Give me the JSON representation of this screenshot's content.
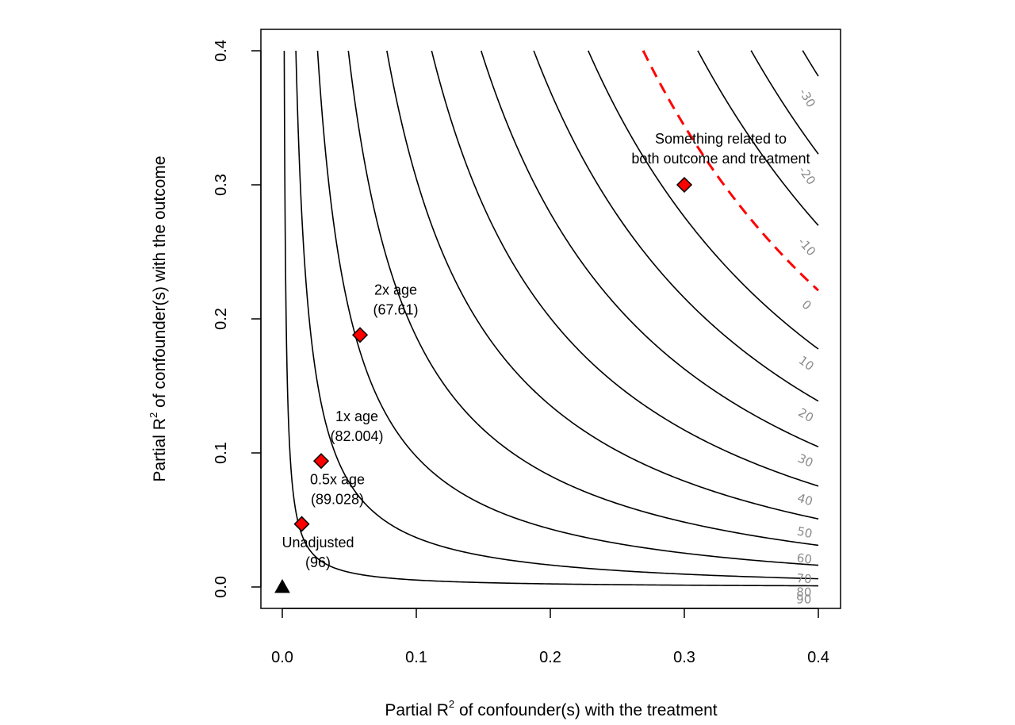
{
  "chart_data": {
    "type": "contour",
    "xlabel": "Partial R^2 of confounder(s) with the treatment",
    "ylabel": "Partial R^2 of confounder(s) with the outcome",
    "xlabel_parts": {
      "pre": "Partial R",
      "sup": "2",
      "post": " of confounder(s) with the treatment"
    },
    "ylabel_parts": {
      "pre": "Partial R",
      "sup": "2",
      "post": " of confounder(s) with the outcome"
    },
    "xlim": [
      0,
      0.4
    ],
    "ylim": [
      0,
      0.4
    ],
    "x_ticks": [
      0.0,
      0.1,
      0.2,
      0.3,
      0.4
    ],
    "x_tick_labels": [
      "0.0",
      "0.1",
      "0.2",
      "0.3",
      "0.4"
    ],
    "y_ticks": [
      0.0,
      0.1,
      0.2,
      0.3,
      0.4
    ],
    "y_tick_labels": [
      "0.0",
      "0.1",
      "0.2",
      "0.3",
      "0.4"
    ],
    "unadjusted_estimate": 96,
    "estimate_scale": 250,
    "threshold_level": 0,
    "contour_levels": [
      {
        "level": 90,
        "label": "90"
      },
      {
        "level": 80,
        "label": "80"
      },
      {
        "level": 70,
        "label": "70"
      },
      {
        "level": 60,
        "label": "60"
      },
      {
        "level": 50,
        "label": "50"
      },
      {
        "level": 40,
        "label": "40"
      },
      {
        "level": 30,
        "label": "30"
      },
      {
        "level": 20,
        "label": "20"
      },
      {
        "level": 10,
        "label": "10"
      },
      {
        "level": 0,
        "label": "0"
      },
      {
        "level": -10,
        "label": "-10"
      },
      {
        "level": -20,
        "label": "-20"
      },
      {
        "level": -30,
        "label": "-30"
      }
    ],
    "points": [
      {
        "name": "Unadjusted",
        "label_lines": [
          "Unadjusted",
          "(96)"
        ],
        "x": 0.0,
        "y": 0.0,
        "marker": "triangle"
      },
      {
        "name": "0.5x age",
        "label_lines": [
          "0.5x age",
          "(89.028)"
        ],
        "x": 0.0145,
        "y": 0.047,
        "marker": "diamond"
      },
      {
        "name": "1x age",
        "label_lines": [
          "1x age",
          "(82.004)"
        ],
        "x": 0.029,
        "y": 0.094,
        "marker": "diamond"
      },
      {
        "name": "2x age",
        "label_lines": [
          "2x age",
          "(67.61)"
        ],
        "x": 0.058,
        "y": 0.188,
        "marker": "diamond"
      },
      {
        "name": "Something related to both outcome and treatment",
        "label_lines": [
          "Something related to",
          "both outcome and treatment"
        ],
        "x": 0.3,
        "y": 0.3,
        "marker": "diamond"
      }
    ],
    "colors": {
      "axis": "#000000",
      "contour": "#000000",
      "threshold": "#ff0000",
      "marker_fill": "#ff0000",
      "label_gray": "#8a8a8a"
    }
  }
}
